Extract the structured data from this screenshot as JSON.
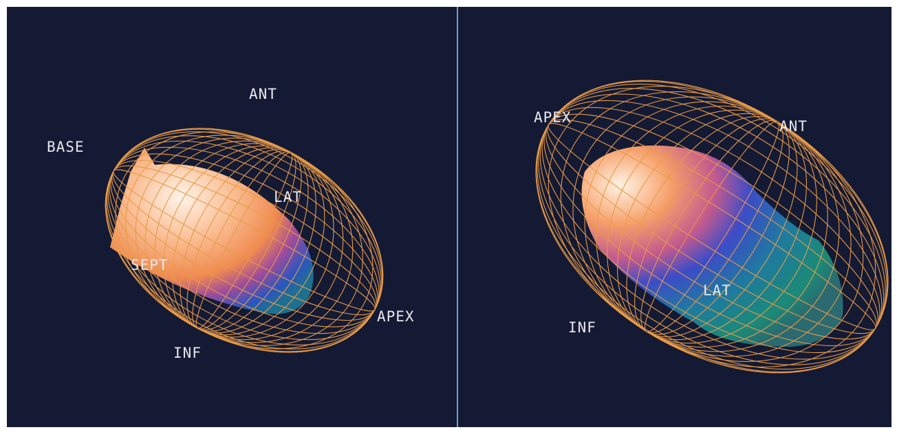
{
  "panels": [
    {
      "labels": [
        "ANT",
        "BASE",
        "LAT",
        "SEPT",
        "APEX",
        "INF"
      ]
    },
    {
      "labels": [
        "APEX",
        "ANT",
        "LAT",
        "INF"
      ]
    }
  ]
}
